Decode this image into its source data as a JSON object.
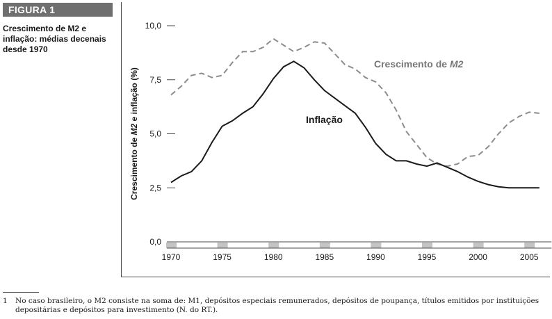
{
  "figure_label": "FIGURA 1",
  "caption": "Crescimento de M2 e inflação: médias decenais desde 1970",
  "footnote": {
    "number": "1",
    "line1": "No caso brasileiro, o M2 consiste na soma de: M1, depósitos especiais remunerados, depósitos de poupança, títulos emitidos por instituições",
    "line2": "depositárias e depósitos para investimento (N. do RT.)."
  },
  "chart_data": {
    "type": "line",
    "title": "",
    "xlabel": "",
    "ylabel": "Crescimento de M2 e inflação (%)",
    "xlim": [
      1970,
      2006.5
    ],
    "ylim": [
      0,
      10
    ],
    "yticks": [
      0,
      2.5,
      5,
      7.5,
      10
    ],
    "ytick_labels": [
      "0,0",
      "2,5",
      "5,0",
      "7,5",
      "10,0"
    ],
    "xticks": [
      1970,
      1975,
      1980,
      1985,
      1990,
      1995,
      2000,
      2005
    ],
    "xtick_labels": [
      "1970",
      "1975",
      "1980",
      "1985",
      "1990",
      "1995",
      "2000",
      "2005"
    ],
    "grid": false,
    "colors": {
      "m2": "#8c8c8c",
      "inflation": "#1a1a1a",
      "axis": "#4a4a4a",
      "band": "#c4c4c4"
    },
    "series": [
      {
        "name": "Crescimento de M2",
        "style": "dashed",
        "x": [
          1970,
          1971,
          1972,
          1973,
          1974,
          1975,
          1976,
          1977,
          1978,
          1979,
          1980,
          1981,
          1982,
          1983,
          1984,
          1985,
          1986,
          1987,
          1988,
          1989,
          1990,
          1991,
          1992,
          1993,
          1994,
          1995,
          1996,
          1997,
          1998,
          1999,
          2000,
          2001,
          2002,
          2003,
          2004,
          2005,
          2006
        ],
        "values": [
          6.8,
          7.2,
          7.7,
          7.8,
          7.6,
          7.7,
          8.3,
          8.8,
          8.8,
          9.0,
          9.4,
          9.1,
          8.8,
          9.0,
          9.25,
          9.2,
          8.7,
          8.2,
          8.0,
          7.6,
          7.4,
          6.9,
          6.1,
          5.1,
          4.5,
          3.9,
          3.6,
          3.5,
          3.6,
          3.95,
          4.0,
          4.4,
          5.0,
          5.5,
          5.8,
          6.0,
          5.95
        ]
      },
      {
        "name": "Inflação",
        "style": "solid",
        "x": [
          1970,
          1971,
          1972,
          1973,
          1974,
          1975,
          1976,
          1977,
          1978,
          1979,
          1980,
          1981,
          1982,
          1983,
          1984,
          1985,
          1986,
          1987,
          1988,
          1989,
          1990,
          1991,
          1992,
          1993,
          1994,
          1995,
          1996,
          1997,
          1998,
          1999,
          2000,
          2001,
          2002,
          2003,
          2004,
          2005,
          2006
        ],
        "values": [
          2.75,
          3.05,
          3.25,
          3.75,
          4.6,
          5.35,
          5.6,
          5.95,
          6.25,
          6.85,
          7.55,
          8.1,
          8.35,
          8.05,
          7.5,
          7.0,
          6.65,
          6.3,
          5.95,
          5.3,
          4.55,
          4.05,
          3.75,
          3.75,
          3.6,
          3.5,
          3.65,
          3.45,
          3.25,
          3.0,
          2.8,
          2.65,
          2.55,
          2.5,
          2.5,
          2.5,
          2.5
        ]
      }
    ],
    "annotations": [
      {
        "text": "Crescimento de",
        "italic_part": "M2",
        "series": "Crescimento de M2"
      },
      {
        "text": "Inflação",
        "series": "Inflação"
      }
    ]
  }
}
